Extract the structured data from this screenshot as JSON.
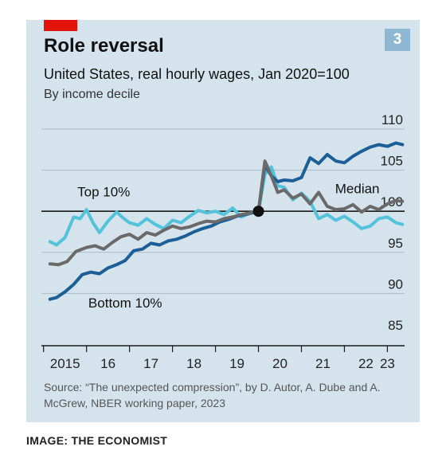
{
  "header": {
    "title": "Role reversal",
    "subtitle": "United States, real hourly wages, Jan 2020=100",
    "subsubtitle": "By income decile",
    "badge": "3"
  },
  "footer": {
    "source": "Source: “The unexpected compression”, by D. Autor, A. Dube and A. McGrew, NBER working paper, 2023",
    "credit": "IMAGE: THE ECONOMIST"
  },
  "colors": {
    "panel": "#d5e3ec",
    "accent": "#e3120b",
    "badge": "#8eb7d2",
    "top10": "#53c3dc",
    "median": "#6a6a6a",
    "bottom10": "#1c5f96",
    "reference_dot": "#111111"
  },
  "chart_data": {
    "type": "line",
    "xlim": [
      2014.95,
      2023.4
    ],
    "ylim": [
      85,
      110
    ],
    "yticks": [
      85,
      90,
      95,
      100,
      105,
      110
    ],
    "xticks": [
      {
        "label": "2015",
        "x": 2015.5
      },
      {
        "label": "16",
        "x": 2016.5
      },
      {
        "label": "17",
        "x": 2017.5
      },
      {
        "label": "18",
        "x": 2018.5
      },
      {
        "label": "19",
        "x": 2019.5
      },
      {
        "label": "20",
        "x": 2020.5
      },
      {
        "label": "21",
        "x": 2021.5
      },
      {
        "label": "22",
        "x": 2022.5
      },
      {
        "label": "23",
        "x": 2023.0
      }
    ],
    "reference_line": 100,
    "reference_point": {
      "x": 2020.0,
      "y": 100
    },
    "series": [
      {
        "name": "Top 10%",
        "key": "top10",
        "x": [
          2015.15,
          2015.3,
          2015.5,
          2015.7,
          2015.85,
          2016.0,
          2016.15,
          2016.3,
          2016.5,
          2016.7,
          2016.85,
          2017.0,
          2017.2,
          2017.4,
          2017.6,
          2017.8,
          2018.0,
          2018.2,
          2018.4,
          2018.6,
          2018.8,
          2019.0,
          2019.2,
          2019.4,
          2019.6,
          2019.8,
          2020.0,
          2020.15,
          2020.3,
          2020.45,
          2020.6,
          2020.8,
          2021.0,
          2021.2,
          2021.4,
          2021.6,
          2021.8,
          2022.0,
          2022.2,
          2022.4,
          2022.6,
          2022.8,
          2023.0,
          2023.2,
          2023.35
        ],
        "y": [
          96.3,
          95.9,
          96.8,
          99.3,
          99.1,
          100.2,
          98.6,
          97.4,
          98.8,
          99.9,
          99.2,
          98.6,
          98.3,
          99.1,
          98.4,
          97.9,
          98.9,
          98.6,
          99.4,
          100.1,
          99.8,
          100.0,
          99.6,
          100.4,
          99.3,
          99.8,
          100.0,
          104.5,
          105.4,
          103.1,
          102.9,
          101.4,
          102.2,
          101.2,
          99.1,
          99.6,
          98.9,
          99.4,
          98.7,
          97.9,
          98.2,
          99.1,
          99.3,
          98.6,
          98.4
        ]
      },
      {
        "name": "Median",
        "key": "median",
        "x": [
          2015.15,
          2015.35,
          2015.55,
          2015.75,
          2016.0,
          2016.2,
          2016.4,
          2016.6,
          2016.8,
          2017.0,
          2017.2,
          2017.4,
          2017.6,
          2017.8,
          2018.0,
          2018.2,
          2018.4,
          2018.6,
          2018.8,
          2019.0,
          2019.2,
          2019.4,
          2019.6,
          2019.8,
          2020.0,
          2020.15,
          2020.3,
          2020.45,
          2020.6,
          2020.8,
          2021.0,
          2021.2,
          2021.4,
          2021.6,
          2021.8,
          2022.0,
          2022.2,
          2022.4,
          2022.6,
          2022.8,
          2023.0,
          2023.2,
          2023.35
        ],
        "y": [
          93.6,
          93.5,
          93.9,
          95.1,
          95.6,
          95.8,
          95.4,
          96.2,
          96.9,
          97.2,
          96.6,
          97.4,
          97.1,
          97.7,
          98.2,
          97.9,
          98.1,
          98.5,
          98.8,
          98.7,
          99.1,
          99.3,
          99.6,
          99.8,
          100.0,
          106.1,
          104.3,
          102.3,
          102.6,
          101.6,
          102.1,
          100.9,
          102.3,
          100.6,
          100.2,
          100.3,
          100.8,
          99.9,
          100.6,
          100.2,
          100.9,
          101.3,
          101.2
        ]
      },
      {
        "name": "Bottom 10%",
        "key": "bottom10",
        "x": [
          2015.15,
          2015.3,
          2015.5,
          2015.7,
          2015.9,
          2016.1,
          2016.3,
          2016.5,
          2016.7,
          2016.9,
          2017.1,
          2017.3,
          2017.5,
          2017.7,
          2017.9,
          2018.1,
          2018.3,
          2018.5,
          2018.7,
          2018.9,
          2019.1,
          2019.3,
          2019.5,
          2019.7,
          2019.85,
          2020.0,
          2020.15,
          2020.3,
          2020.45,
          2020.6,
          2020.8,
          2021.0,
          2021.2,
          2021.4,
          2021.6,
          2021.8,
          2022.0,
          2022.2,
          2022.4,
          2022.6,
          2022.8,
          2023.0,
          2023.2,
          2023.35
        ],
        "y": [
          89.3,
          89.5,
          90.2,
          91.1,
          92.3,
          92.6,
          92.4,
          93.1,
          93.5,
          94.0,
          95.2,
          95.4,
          96.1,
          95.9,
          96.4,
          96.6,
          97.0,
          97.5,
          97.9,
          98.2,
          98.7,
          99.0,
          99.4,
          99.6,
          99.8,
          100.0,
          105.6,
          104.3,
          103.6,
          103.8,
          103.7,
          104.1,
          106.5,
          105.8,
          106.9,
          106.1,
          105.9,
          106.7,
          107.3,
          107.8,
          108.1,
          107.9,
          108.3,
          108.1
        ]
      }
    ],
    "annotations": [
      {
        "text": "Top 10%",
        "x": 2016.4,
        "y": 101.8
      },
      {
        "text": "Median",
        "x": 2022.3,
        "y": 102.2
      },
      {
        "text": "Bottom 10%",
        "x": 2016.9,
        "y": 88.3
      }
    ]
  }
}
